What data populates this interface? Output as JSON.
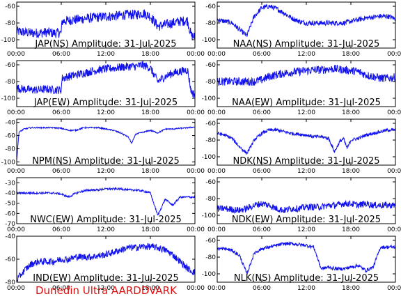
{
  "footer": "Dunedin Ultra AARDDVARK",
  "chart_data": [
    {
      "type": "line",
      "title": "JAP(NS) Amplitude: 31-Jul-2025",
      "ylim": [
        -110,
        -55
      ],
      "yticks": [
        -60,
        -80,
        -100
      ],
      "xticks": [
        "00:00",
        "06:00",
        "12:00",
        "18:00",
        "00:00"
      ],
      "series": [
        {
          "x": [
            0,
            1,
            2,
            3,
            4,
            5,
            6,
            6.1,
            7,
            8,
            9,
            10,
            11,
            12,
            13,
            14,
            15,
            16,
            17,
            18,
            19,
            20,
            21,
            22,
            23,
            23.5,
            24
          ],
          "values": [
            -90,
            -91,
            -92,
            -92,
            -91,
            -92,
            -92,
            -78,
            -77,
            -76,
            -75,
            -74,
            -73,
            -72,
            -72,
            -71,
            -70,
            -70,
            -68,
            -72,
            -84,
            -82,
            -80,
            -78,
            -77,
            -95,
            -97
          ],
          "noise": 6
        }
      ]
    },
    {
      "type": "line",
      "title": "NAA(NS) Amplitude: 31-Jul-2025",
      "ylim": [
        -110,
        -55
      ],
      "yticks": [
        -60,
        -80,
        -100
      ],
      "xticks": [
        "00:00",
        "06:00",
        "12:00",
        "18:00",
        "00:00"
      ],
      "series": [
        {
          "x": [
            0,
            1,
            2,
            3,
            4,
            5,
            6,
            7,
            8,
            9,
            10,
            11,
            12,
            13,
            14,
            15,
            16,
            17,
            18,
            19,
            20,
            21,
            22,
            23,
            24
          ],
          "values": [
            -76,
            -78,
            -80,
            -88,
            -95,
            -72,
            -62,
            -60,
            -63,
            -68,
            -74,
            -78,
            -80,
            -80,
            -80,
            -80,
            -80,
            -80,
            -78,
            -76,
            -74,
            -73,
            -72,
            -72,
            -75
          ],
          "noise": 3
        }
      ]
    },
    {
      "type": "line",
      "title": "JAP(EW) Amplitude: 31-Jul-2025",
      "ylim": [
        -110,
        -55
      ],
      "yticks": [
        -60,
        -80,
        -100
      ],
      "xticks": [
        "00:00",
        "06:00",
        "12:00",
        "18:00",
        "00:00"
      ],
      "series": [
        {
          "x": [
            0,
            1,
            2,
            3,
            4,
            5,
            6,
            6.1,
            7,
            8,
            9,
            10,
            11,
            12,
            13,
            14,
            15,
            16,
            17,
            18,
            19,
            20,
            21,
            22,
            23,
            23.5,
            24
          ],
          "values": [
            -88,
            -89,
            -90,
            -90,
            -89,
            -90,
            -90,
            -76,
            -74,
            -72,
            -70,
            -68,
            -66,
            -65,
            -64,
            -63,
            -62,
            -62,
            -60,
            -64,
            -80,
            -74,
            -70,
            -68,
            -66,
            -92,
            -96
          ],
          "noise": 5
        }
      ]
    },
    {
      "type": "line",
      "title": "NAA(EW) Amplitude: 31-Jul-2025",
      "ylim": [
        -110,
        -55
      ],
      "yticks": [
        -60,
        -80,
        -100
      ],
      "xticks": [
        "00:00",
        "06:00",
        "12:00",
        "18:00",
        "00:00"
      ],
      "series": [
        {
          "x": [
            0,
            1,
            2,
            3,
            4,
            5,
            6,
            7,
            8,
            9,
            10,
            11,
            12,
            13,
            14,
            15,
            16,
            17,
            18,
            19,
            20,
            21,
            22,
            23,
            24
          ],
          "values": [
            -80,
            -80,
            -80,
            -80,
            -80,
            -80,
            -78,
            -74,
            -72,
            -70,
            -69,
            -68,
            -67,
            -66,
            -66,
            -65,
            -65,
            -66,
            -67,
            -68,
            -72,
            -74,
            -76,
            -76,
            -75
          ],
          "noise": 5
        }
      ]
    },
    {
      "type": "line",
      "title": "NPM(NS) Amplitude: 31-Jul-2025",
      "ylim": [
        -105,
        -35
      ],
      "yticks": [
        -40,
        -60,
        -80,
        -100
      ],
      "xticks": [
        "00:00",
        "06:00",
        "12:00",
        "18:00",
        "00:00"
      ],
      "series": [
        {
          "x": [
            0,
            0.3,
            1,
            2,
            3,
            4,
            5,
            6,
            7,
            8,
            9,
            10,
            11,
            12,
            13,
            14,
            15,
            15.5,
            16,
            17,
            18,
            19,
            20,
            21,
            22,
            23,
            24
          ],
          "values": [
            -98,
            -55,
            -50,
            -48,
            -48,
            -48,
            -48,
            -49,
            -52,
            -52,
            -48,
            -48,
            -48,
            -50,
            -52,
            -56,
            -62,
            -72,
            -58,
            -55,
            -52,
            -56,
            -50,
            -50,
            -49,
            -48,
            -47
          ],
          "noise": 1
        }
      ]
    },
    {
      "type": "line",
      "title": "NDK(NS) Amplitude: 31-Jul-2025",
      "ylim": [
        -110,
        -55
      ],
      "yticks": [
        -60,
        -80,
        -100
      ],
      "xticks": [
        "00:00",
        "06:00",
        "12:00",
        "18:00",
        "00:00"
      ],
      "series": [
        {
          "x": [
            0,
            1,
            2,
            3,
            4,
            5,
            6,
            7,
            8,
            9,
            10,
            11,
            12,
            13,
            14,
            15,
            15.8,
            16.5,
            17,
            17.5,
            18,
            19,
            20,
            21,
            22,
            23,
            24
          ],
          "values": [
            -72,
            -74,
            -78,
            -88,
            -96,
            -80,
            -72,
            -68,
            -68,
            -70,
            -72,
            -73,
            -74,
            -76,
            -76,
            -78,
            -94,
            -82,
            -78,
            -90,
            -80,
            -78,
            -74,
            -72,
            -70,
            -68,
            -68
          ],
          "noise": 2
        }
      ]
    },
    {
      "type": "line",
      "title": "NWC(EW) Amplitude: 31-Jul-2025",
      "ylim": [
        -70,
        -25
      ],
      "yticks": [
        -30,
        -40,
        -50,
        -60,
        -70
      ],
      "xticks": [
        "00:00",
        "06:00",
        "12:00",
        "18:00",
        "00:00"
      ],
      "series": [
        {
          "x": [
            0,
            1,
            2,
            3,
            4,
            5,
            6,
            7,
            8,
            9,
            10,
            11,
            12,
            13,
            14,
            15,
            16,
            17,
            18,
            19,
            20,
            21,
            22,
            23,
            24
          ],
          "values": [
            -40,
            -40,
            -40,
            -40,
            -40,
            -40,
            -41,
            -44,
            -40,
            -38,
            -37,
            -37,
            -36,
            -36,
            -36,
            -37,
            -37,
            -38,
            -40,
            -62,
            -46,
            -52,
            -44,
            -44,
            -44
          ],
          "noise": 1
        }
      ]
    },
    {
      "type": "line",
      "title": "NDK(EW) Amplitude: 31-Jul-2025",
      "ylim": [
        -110,
        -55
      ],
      "yticks": [
        -60,
        -80,
        -100
      ],
      "xticks": [
        "00:00",
        "06:00",
        "12:00",
        "18:00",
        "00:00"
      ],
      "series": [
        {
          "x": [
            0,
            1,
            2,
            3,
            4,
            5,
            6,
            7,
            8,
            9,
            10,
            11,
            12,
            13,
            14,
            15,
            16,
            17,
            18,
            19,
            20,
            21,
            22,
            23,
            24
          ],
          "values": [
            -92,
            -92,
            -93,
            -94,
            -92,
            -88,
            -86,
            -88,
            -92,
            -94,
            -92,
            -92,
            -90,
            -90,
            -90,
            -88,
            -88,
            -86,
            -86,
            -88,
            -86,
            -88,
            -88,
            -88,
            -88
          ],
          "noise": 4
        }
      ]
    },
    {
      "type": "line",
      "title": "IND(EW) Amplitude: 31-Jul-2025",
      "ylim": [
        -80,
        -40
      ],
      "yticks": [
        -40,
        -60,
        -80
      ],
      "xticks": [
        "00:00",
        "06:00",
        "12:00",
        "18:00",
        "00:00"
      ],
      "series": [
        {
          "x": [
            0,
            1,
            2,
            3,
            4,
            5,
            6,
            7,
            8,
            9,
            10,
            11,
            12,
            13,
            14,
            15,
            16,
            17,
            18,
            19,
            20,
            21,
            22,
            23,
            24
          ],
          "values": [
            -78,
            -70,
            -64,
            -62,
            -62,
            -62,
            -60,
            -60,
            -58,
            -58,
            -58,
            -57,
            -56,
            -54,
            -52,
            -50,
            -50,
            -49,
            -49,
            -50,
            -52,
            -56,
            -62,
            -68,
            -72
          ],
          "noise": 3
        }
      ]
    },
    {
      "type": "line",
      "title": "NLK(NS) Amplitude: 31-Jul-2025",
      "ylim": [
        -110,
        -55
      ],
      "yticks": [
        -60,
        -80,
        -100
      ],
      "xticks": [
        "00:00",
        "06:00",
        "12:00",
        "18:00",
        "00:00"
      ],
      "series": [
        {
          "x": [
            0,
            1,
            2,
            3,
            4,
            5,
            6,
            7,
            8,
            9,
            10,
            11,
            12,
            13,
            14,
            15,
            16,
            17,
            18,
            19,
            20,
            21,
            22,
            23,
            24
          ],
          "values": [
            -70,
            -70,
            -72,
            -78,
            -100,
            -75,
            -70,
            -68,
            -66,
            -64,
            -64,
            -65,
            -66,
            -68,
            -94,
            -92,
            -94,
            -94,
            -92,
            -90,
            -96,
            -92,
            -68,
            -68,
            -68
          ],
          "noise": 2
        }
      ]
    }
  ]
}
